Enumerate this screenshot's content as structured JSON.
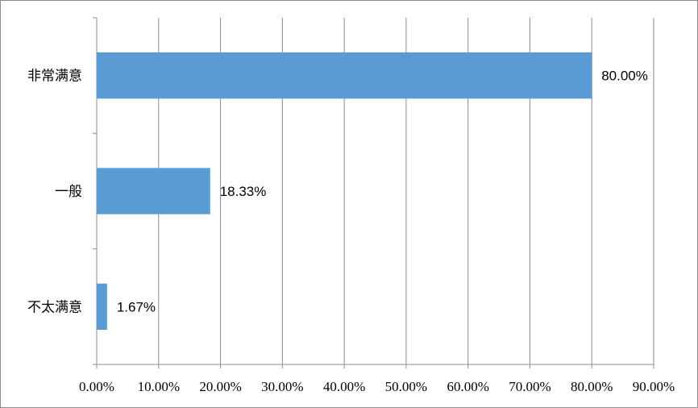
{
  "chart_data": {
    "type": "bar",
    "orientation": "horizontal",
    "categories": [
      "非常满意",
      "一般",
      "不太满意"
    ],
    "values": [
      80.0,
      18.33,
      1.67
    ],
    "data_labels": [
      "80.00%",
      "18.33%",
      "1.67%"
    ],
    "xlim": [
      0,
      90
    ],
    "x_ticks": [
      0,
      10,
      20,
      30,
      40,
      50,
      60,
      70,
      80,
      90
    ],
    "x_tick_labels": [
      "0.00%",
      "10.00%",
      "20.00%",
      "30.00%",
      "40.00%",
      "50.00%",
      "60.00%",
      "70.00%",
      "80.00%",
      "90.00%"
    ],
    "grid": "vertical",
    "legend": "none",
    "title": "",
    "xlabel": "",
    "ylabel": ""
  },
  "colors": {
    "bar": "#5b9bd5",
    "grid": "#8c8c8c",
    "axis": "#8c8c8c"
  }
}
